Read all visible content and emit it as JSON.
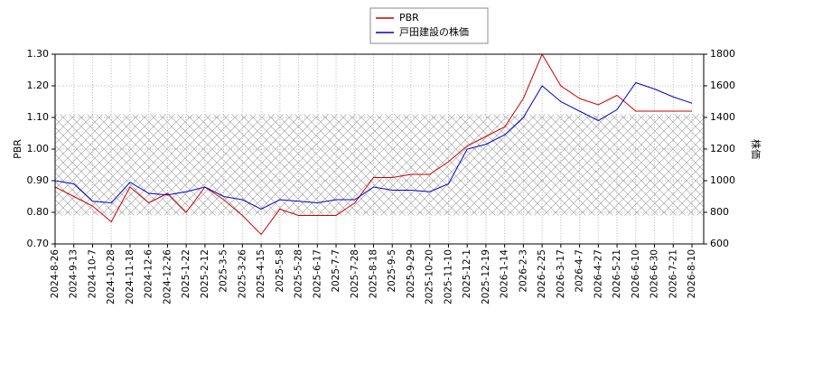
{
  "chart_data": {
    "type": "line",
    "categories": [
      "2024-8-26",
      "2024-9-13",
      "2024-10-7",
      "2024-10-28",
      "2024-11-18",
      "2024-12-6",
      "2024-12-26",
      "2025-1-22",
      "2025-2-12",
      "2025-3-5",
      "2025-3-26",
      "2025-4-15",
      "2025-5-8",
      "2025-5-28",
      "2025-6-17",
      "2025-7-7",
      "2025-7-28",
      "2025-8-18",
      "2025-9-5",
      "2025-9-29",
      "2025-10-20",
      "2025-11-10",
      "2025-12-1",
      "2025-12-19",
      "2026-1-14",
      "2026-2-3",
      "2026-2-25",
      "2026-3-17",
      "2026-4-7",
      "2026-4-27",
      "2026-5-21",
      "2026-6-10",
      "2026-6-30",
      "2026-7-21",
      "2026-8-10"
    ],
    "series": [
      {
        "name": "PBR",
        "color": "#cc0000",
        "values": [
          0.88,
          0.85,
          0.82,
          0.77,
          0.88,
          0.83,
          0.86,
          0.8,
          0.88,
          0.84,
          0.79,
          0.73,
          0.81,
          0.79,
          0.79,
          0.79,
          0.83,
          0.91,
          0.91,
          0.92,
          0.92,
          0.96,
          1.01,
          1.04,
          1.07,
          1.16,
          1.3,
          1.2,
          1.16,
          1.14,
          1.17,
          1.12,
          1.12,
          1.12,
          1.12
        ]
      },
      {
        "name": "戸田建設の株価",
        "color": "#0000cc",
        "axis": "y2",
        "values": [
          1000,
          980,
          870,
          860,
          990,
          920,
          910,
          930,
          960,
          900,
          880,
          820,
          880,
          870,
          860,
          880,
          880,
          960,
          940,
          940,
          930,
          980,
          1200,
          1230,
          1290,
          1400,
          1600,
          1500,
          1440,
          1380,
          1450,
          1620,
          1580,
          1530,
          1490
        ]
      }
    ],
    "ylabel": "PBR",
    "y2label": "株価",
    "ylim": [
      0.7,
      1.3
    ],
    "yticks": [
      {
        "value": 0.7,
        "label": "0.70"
      },
      {
        "value": 0.8,
        "label": "0.80"
      },
      {
        "value": 0.9,
        "label": "0.90"
      },
      {
        "value": 1.0,
        "label": "1.00"
      },
      {
        "value": 1.1,
        "label": "1.10"
      },
      {
        "value": 1.2,
        "label": "1.20"
      },
      {
        "value": 1.3,
        "label": "1.30"
      }
    ],
    "y2lim": [
      600,
      1800
    ],
    "y2ticks": [
      600,
      800,
      1000,
      1200,
      1400,
      1600,
      1800
    ],
    "shaded_range": [
      0.79,
      1.11
    ],
    "grid": true,
    "legend": "top"
  }
}
